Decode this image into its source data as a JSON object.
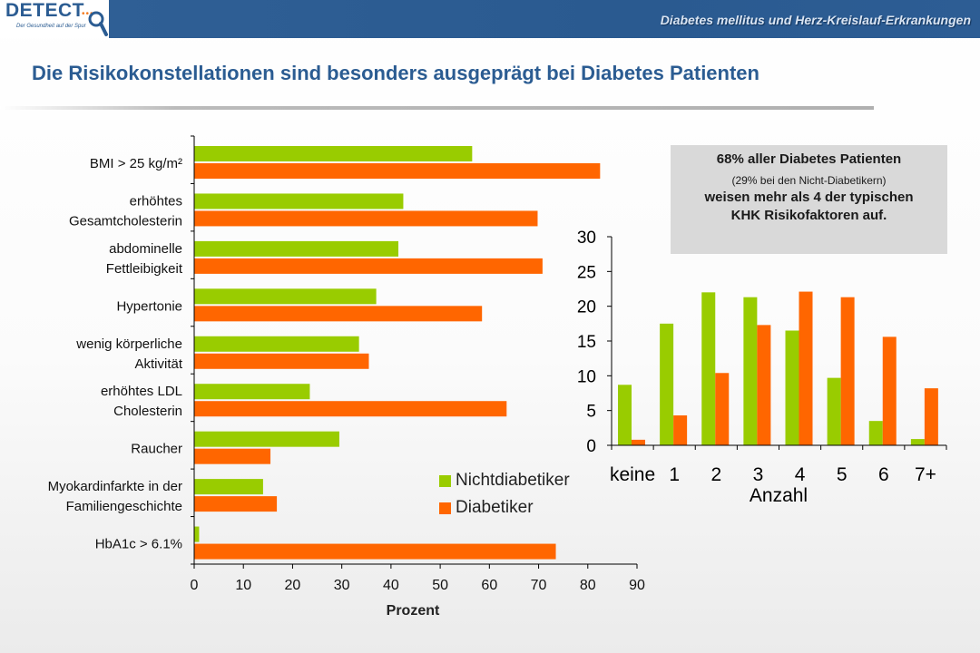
{
  "header": {
    "logo_text": "DETECT",
    "logo_tagline": "Der Gesundheit auf der Spur",
    "topic": "Diabetes mellitus und Herz-Kreislauf-Erkrankungen"
  },
  "slide_title": "Die Risikokonstellationen sind besonders ausgeprägt bei Diabetes Patienten",
  "callout": {
    "line1": "68% aller Diabetes Patienten",
    "line2": "(29% bei den Nicht-Diabetikern)",
    "line3": "weisen mehr als 4 der typischen KHK Risikofaktoren auf."
  },
  "legend": {
    "series1": "Nichtdiabetiker",
    "series2": "Diabetiker"
  },
  "colors": {
    "nichtdiabetiker": "#99cc00",
    "diabetiker": "#ff6600",
    "brand": "#2b5c92"
  },
  "chart_data": [
    {
      "type": "bar",
      "orientation": "horizontal",
      "categories": [
        [
          "BMI > 25 kg/m²"
        ],
        [
          "erhöhtes",
          "Gesamtcholesterin"
        ],
        [
          "abdominelle",
          "Fettleibigkeit"
        ],
        [
          "Hypertonie"
        ],
        [
          "wenig körperliche",
          "Aktivität"
        ],
        [
          "erhöhtes LDL",
          "Cholesterin"
        ],
        [
          "Raucher"
        ],
        [
          "Myokardinfarkte in der",
          "Familiengeschichte"
        ],
        [
          "HbA1c > 6.1%"
        ]
      ],
      "series": [
        {
          "name": "Nichtdiabetiker",
          "values": [
            56.5,
            42.5,
            41.5,
            37,
            33.5,
            23.5,
            29.5,
            14,
            1
          ]
        },
        {
          "name": "Diabetiker",
          "values": [
            82.5,
            69.8,
            70.8,
            58.5,
            35.5,
            63.5,
            15.5,
            16.8,
            73.5
          ]
        }
      ],
      "xlabel": "Prozent",
      "xlim": [
        0,
        90
      ],
      "xticks": [
        0,
        10,
        20,
        30,
        40,
        50,
        60,
        70,
        80,
        90
      ],
      "grid": false,
      "legend": "bottom-right"
    },
    {
      "type": "bar",
      "categories": [
        "keine",
        "1",
        "2",
        "3",
        "4",
        "5",
        "6",
        "7+"
      ],
      "series": [
        {
          "name": "Nichtdiabetiker",
          "values": [
            8.7,
            17.5,
            22,
            21.3,
            16.5,
            9.7,
            3.5,
            0.9
          ]
        },
        {
          "name": "Diabetiker",
          "values": [
            0.8,
            4.3,
            10.4,
            17.3,
            22.1,
            21.3,
            15.6,
            8.2
          ]
        }
      ],
      "xlabel": "Anzahl",
      "ylim": [
        0,
        30
      ],
      "yticks": [
        0,
        5,
        10,
        15,
        20,
        25,
        30
      ],
      "grid": false
    }
  ]
}
